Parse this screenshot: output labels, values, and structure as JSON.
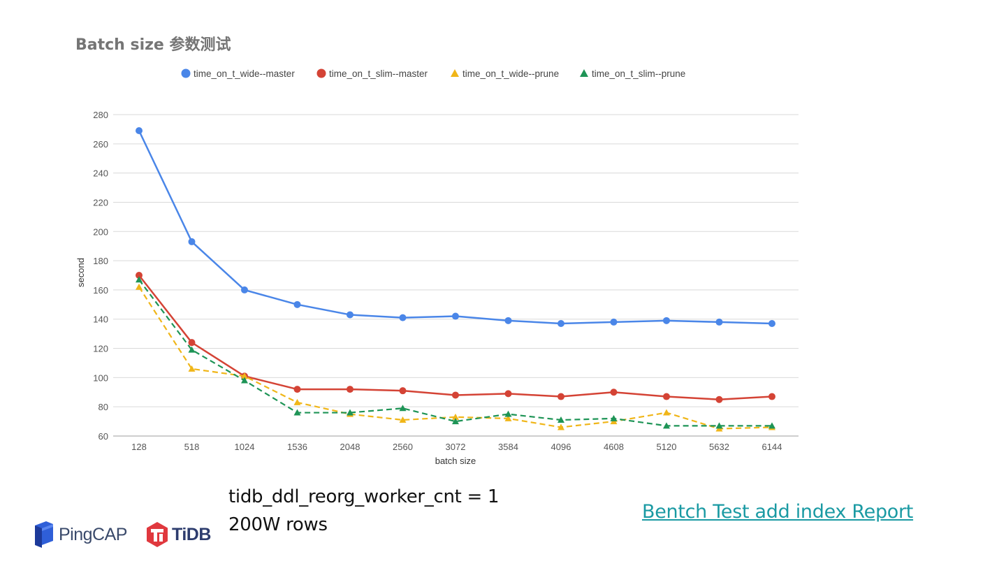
{
  "chart_data": {
    "type": "line",
    "title": "Batch size 参数测试",
    "xlabel": "batch size",
    "ylabel": "second",
    "categories": [
      "128",
      "518",
      "1024",
      "1536",
      "2048",
      "2560",
      "3072",
      "3584",
      "4096",
      "4608",
      "5120",
      "5632",
      "6144"
    ],
    "ylim": [
      60,
      280
    ],
    "yticks": [
      60,
      80,
      100,
      120,
      140,
      160,
      180,
      200,
      220,
      240,
      260,
      280
    ],
    "grid": true,
    "legend_position": "top",
    "series": [
      {
        "name": "time_on_t_wide--master",
        "color": "#4a86e8",
        "marker": "circle",
        "dash": false,
        "values": [
          269,
          193,
          160,
          150,
          143,
          141,
          142,
          139,
          137,
          138,
          139,
          138,
          137
        ]
      },
      {
        "name": "time_on_t_slim--master",
        "color": "#d44335",
        "marker": "circle",
        "dash": false,
        "values": [
          170,
          124,
          101,
          92,
          92,
          91,
          88,
          89,
          87,
          90,
          87,
          85,
          87
        ]
      },
      {
        "name": "time_on_t_wide--prune",
        "color": "#f0b619",
        "marker": "triangle",
        "dash": true,
        "values": [
          162,
          106,
          101,
          83,
          75,
          71,
          73,
          72,
          66,
          70,
          76,
          65,
          66
        ]
      },
      {
        "name": "time_on_t_slim--prune",
        "color": "#1e9456",
        "marker": "triangle",
        "dash": true,
        "values": [
          167,
          119,
          98,
          76,
          76,
          79,
          70,
          75,
          71,
          72,
          67,
          67,
          67
        ]
      }
    ]
  },
  "notes": {
    "line1": "tidb_ddl_reorg_worker_cnt = 1",
    "line2": "200W rows"
  },
  "link": {
    "label": "Bentch Test add index Report"
  },
  "logos": {
    "pingcap": "PingCAP",
    "tidb": "TiDB",
    "pingcap_color": "#2f5fd8",
    "tidb_color": "#e0383e"
  }
}
